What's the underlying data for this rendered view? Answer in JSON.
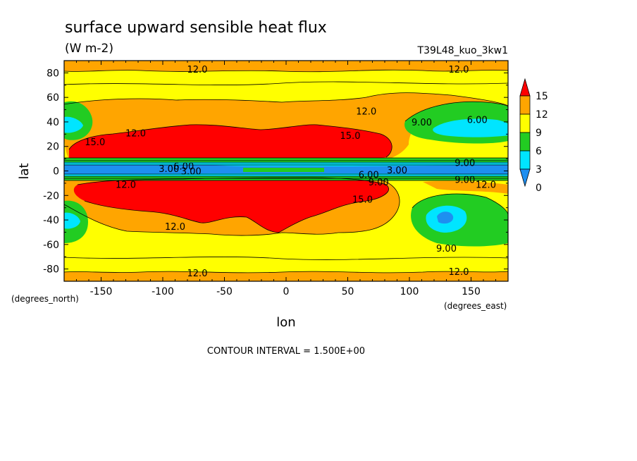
{
  "chart_data": {
    "type": "heatmap",
    "title": "surface upward sensible heat flux",
    "units": "(W m-2)",
    "run_id": "T39L48_kuo_3kw1",
    "xlabel": "lon",
    "ylabel": "lat",
    "x_unit_label": "(degrees_east)",
    "y_unit_label": "(degrees_north)",
    "xlim": [
      -180,
      180
    ],
    "ylim": [
      -90,
      90
    ],
    "x_ticks": [
      -150,
      -100,
      -50,
      0,
      50,
      100,
      150
    ],
    "x_tick_labels": [
      "-150",
      "-100",
      "-50",
      "0",
      "50",
      "100",
      "150"
    ],
    "y_ticks": [
      80,
      60,
      40,
      20,
      0,
      -20,
      -40,
      -60,
      -80
    ],
    "y_tick_labels": [
      "80",
      "60",
      "40",
      "20",
      "0",
      "-20",
      "-40",
      "-60",
      "-80"
    ],
    "colorbar": {
      "levels": [
        0,
        3,
        6,
        9,
        12,
        15
      ],
      "level_labels": [
        "0",
        "3",
        "6",
        "9",
        "12",
        "15"
      ],
      "colors": [
        "#1e8ff0",
        "#00e5ff",
        "#22cc22",
        "#ffff00",
        "#ffa500",
        "#ff0000"
      ]
    },
    "contour_labels": [
      {
        "text": "12.0",
        "lon": -72,
        "lat": 83
      },
      {
        "text": "12.0",
        "lon": 140,
        "lat": 83
      },
      {
        "text": "12.0",
        "lon": -122,
        "lat": 31
      },
      {
        "text": "15.0",
        "lon": -155,
        "lat": 24
      },
      {
        "text": "15.0",
        "lon": 52,
        "lat": 29
      },
      {
        "text": "12.0",
        "lon": 65,
        "lat": 49
      },
      {
        "text": "9.00",
        "lon": 110,
        "lat": 40
      },
      {
        "text": "6.00",
        "lon": 155,
        "lat": 42
      },
      {
        "text": "9.00",
        "lon": 145,
        "lat": 7
      },
      {
        "text": "3.00",
        "lon": -95,
        "lat": 2
      },
      {
        "text": "6.00",
        "lon": -83,
        "lat": 4
      },
      {
        "text": "3.00",
        "lon": -77,
        "lat": 0
      },
      {
        "text": "3.00",
        "lon": 90,
        "lat": 1
      },
      {
        "text": "6.00",
        "lon": 67,
        "lat": -3
      },
      {
        "text": "9.00",
        "lon": 75,
        "lat": -9
      },
      {
        "text": "9.00",
        "lon": 145,
        "lat": -7
      },
      {
        "text": "12.0",
        "lon": 162,
        "lat": -11
      },
      {
        "text": "12.0",
        "lon": -130,
        "lat": -11
      },
      {
        "text": "15.0",
        "lon": 62,
        "lat": -23
      },
      {
        "text": "12.0",
        "lon": -90,
        "lat": -45
      },
      {
        "text": "9.00",
        "lon": 130,
        "lat": -63
      },
      {
        "text": "12.0",
        "lon": -72,
        "lat": -83
      },
      {
        "text": "12.0",
        "lon": 140,
        "lat": -82
      }
    ]
  },
  "footer": {
    "contour_interval": "CONTOUR INTERVAL = 1.500E+00"
  }
}
